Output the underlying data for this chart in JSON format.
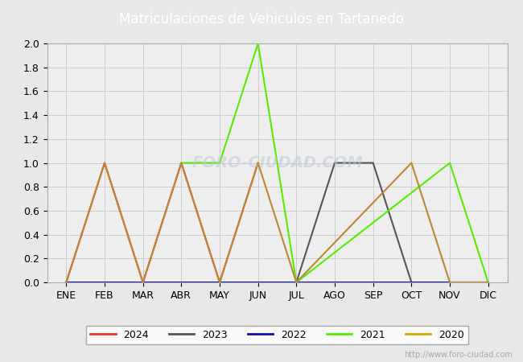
{
  "title": "Matriculaciones de Vehiculos en Tartanedo",
  "title_bg_color": "#4878cc",
  "title_text_color": "#ffffff",
  "months": [
    "ENE",
    "FEB",
    "MAR",
    "ABR",
    "MAY",
    "JUN",
    "JUL",
    "AGO",
    "SEP",
    "OCT",
    "NOV",
    "DIC"
  ],
  "colors": {
    "2024": "#ee3333",
    "2023": "#555555",
    "2022": "#2222bb",
    "2021": "#44ee00",
    "2020": "#cc9900"
  },
  "series": {
    "2024": {
      "x": [
        0,
        1,
        2,
        3,
        4,
        5
      ],
      "y": [
        0,
        1,
        0,
        1,
        0,
        1
      ]
    },
    "2023": {
      "x": [
        6,
        7,
        8,
        9
      ],
      "y": [
        0,
        1,
        1,
        0
      ]
    },
    "2022": {
      "x": [
        0,
        1,
        2,
        3,
        4,
        5,
        6,
        7,
        8,
        9,
        10,
        11
      ],
      "y": [
        0,
        0,
        0,
        0,
        0,
        0,
        0,
        0,
        0,
        0,
        0,
        0
      ]
    },
    "2021": {
      "x": [
        3,
        4,
        5,
        6,
        10,
        11
      ],
      "y": [
        1,
        1,
        2,
        0,
        1,
        0
      ]
    },
    "2020": {
      "x": [
        0,
        1,
        2,
        3,
        4,
        5,
        6,
        9,
        10,
        11
      ],
      "y": [
        0,
        1,
        0,
        1,
        0,
        0,
        0,
        1,
        0,
        0
      ]
    }
  },
  "extra_brown": {
    "x": [
      0,
      1,
      4,
      5,
      6
    ],
    "y": [
      0,
      1,
      0,
      1,
      0
    ]
  },
  "ylim": [
    0.0,
    2.0
  ],
  "yticks": [
    0.0,
    0.2,
    0.4,
    0.6,
    0.8,
    1.0,
    1.2,
    1.4,
    1.6,
    1.8,
    2.0
  ],
  "grid_color": "#cccccc",
  "fig_bg": "#e8e8e8",
  "plot_bg": "#eeeeee",
  "legend_years": [
    "2024",
    "2023",
    "2022",
    "2021",
    "2020"
  ],
  "watermark": "http://www.foro-ciudad.com"
}
